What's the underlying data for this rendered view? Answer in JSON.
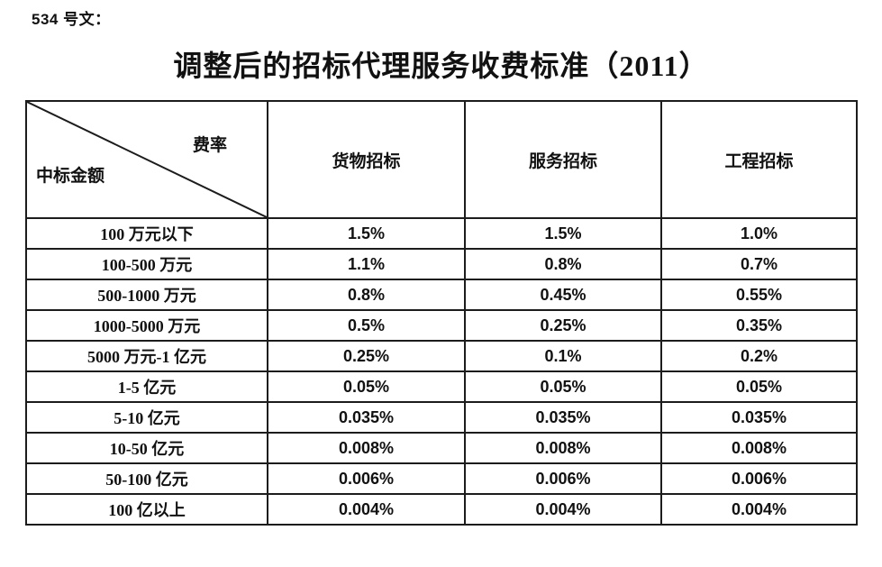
{
  "page": {
    "doc_label": "534 号文：",
    "title": "调整后的招标代理服务收费标准（2011）",
    "ink_color": "#111111"
  },
  "table": {
    "border_color": "#1c1c1c",
    "corner": {
      "top_right": "费率",
      "bottom_left": "中标金额"
    },
    "columns": [
      "货物招标",
      "服务招标",
      "工程招标"
    ],
    "rows": [
      {
        "label": "100 万元以下",
        "values": [
          "1.5%",
          "1.5%",
          "1.0%"
        ]
      },
      {
        "label": "100-500 万元",
        "values": [
          "1.1%",
          "0.8%",
          "0.7%"
        ]
      },
      {
        "label": "500-1000 万元",
        "values": [
          "0.8%",
          "0.45%",
          "0.55%"
        ]
      },
      {
        "label": "1000-5000 万元",
        "values": [
          "0.5%",
          "0.25%",
          "0.35%"
        ]
      },
      {
        "label": "5000 万元-1 亿元",
        "values": [
          "0.25%",
          "0.1%",
          "0.2%"
        ]
      },
      {
        "label": "1-5 亿元",
        "values": [
          "0.05%",
          "0.05%",
          "0.05%"
        ]
      },
      {
        "label": "5-10 亿元",
        "values": [
          "0.035%",
          "0.035%",
          "0.035%"
        ]
      },
      {
        "label": "10-50 亿元",
        "values": [
          "0.008%",
          "0.008%",
          "0.008%"
        ]
      },
      {
        "label": "50-100 亿元",
        "values": [
          "0.006%",
          "0.006%",
          "0.006%"
        ]
      },
      {
        "label": "100 亿以上",
        "values": [
          "0.004%",
          "0.004%",
          "0.004%"
        ]
      }
    ]
  }
}
